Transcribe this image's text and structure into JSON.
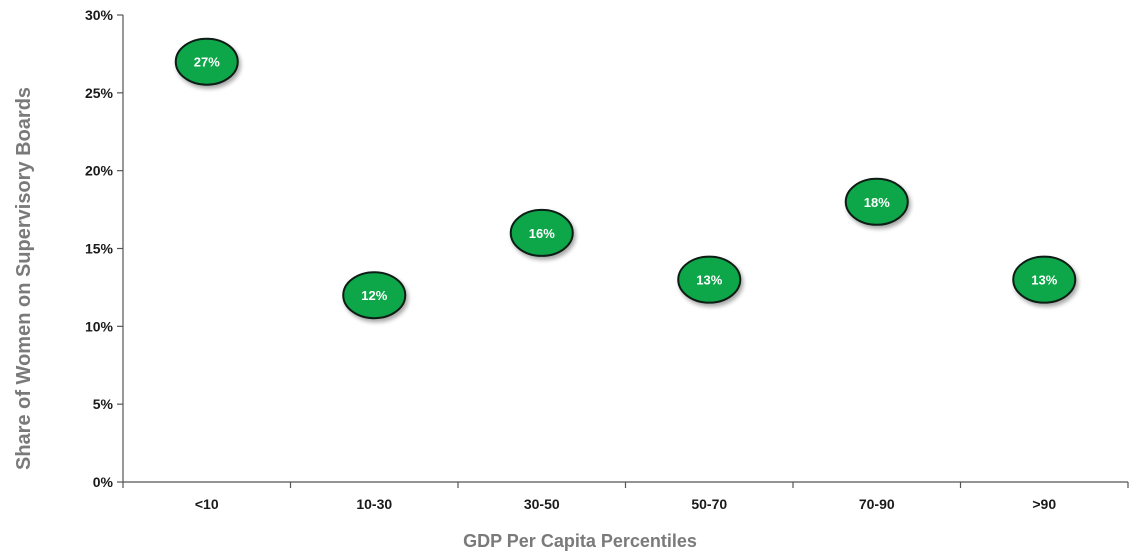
{
  "chart_data": {
    "type": "scatter",
    "title": "",
    "xlabel": "GDP Per Capita Percentiles",
    "ylabel": "Share of Women on Supervisory Boards",
    "categories": [
      "<10",
      "10-30",
      "30-50",
      "50-70",
      "70-90",
      ">90"
    ],
    "values": [
      0.27,
      0.12,
      0.16,
      0.13,
      0.18,
      0.13
    ],
    "data_labels": [
      "27%",
      "12%",
      "16%",
      "13%",
      "18%",
      "13%"
    ],
    "ylim": [
      0,
      0.3
    ],
    "yticks": [
      0,
      0.05,
      0.1,
      0.15,
      0.2,
      0.25,
      0.3
    ],
    "ytick_labels": [
      "0%",
      "5%",
      "10%",
      "15%",
      "20%",
      "25%",
      "30%"
    ],
    "grid": false,
    "legend": "none",
    "marker_color": "#0aa64a",
    "marker_edge_color": "#0d1f12",
    "axis_color": "#555555"
  }
}
